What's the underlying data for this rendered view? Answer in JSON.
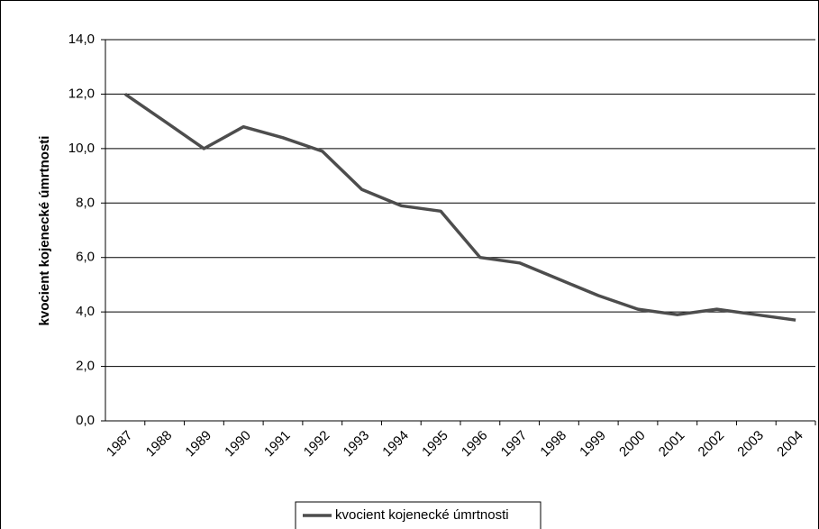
{
  "chart_data": {
    "type": "line",
    "y_label": "kvocient kojenecké úmrtnosti",
    "categories": [
      "1987",
      "1988",
      "1989",
      "1990",
      "1991",
      "1992",
      "1993",
      "1994",
      "1995",
      "1996",
      "1997",
      "1998",
      "1999",
      "2000",
      "2001",
      "2002",
      "2003",
      "2004"
    ],
    "series": [
      {
        "name": "kvocient kojenecké úmrtnosti",
        "color": "#4d4d4d",
        "values": [
          12.0,
          11.0,
          10.0,
          10.8,
          10.4,
          9.9,
          8.5,
          7.9,
          7.7,
          6.0,
          5.8,
          5.2,
          4.6,
          4.1,
          3.9,
          4.1,
          3.9,
          3.7
        ]
      }
    ],
    "ylim": [
      0,
      14
    ],
    "yticks": [
      {
        "value": 0,
        "label": "0,0"
      },
      {
        "value": 2,
        "label": "2,0"
      },
      {
        "value": 4,
        "label": "4,0"
      },
      {
        "value": 6,
        "label": "6,0"
      },
      {
        "value": 8,
        "label": "8,0"
      },
      {
        "value": 10,
        "label": "10,0"
      },
      {
        "value": 12,
        "label": "12,0"
      },
      {
        "value": 14,
        "label": "14,0"
      }
    ],
    "grid": true,
    "legend": "bottom"
  }
}
